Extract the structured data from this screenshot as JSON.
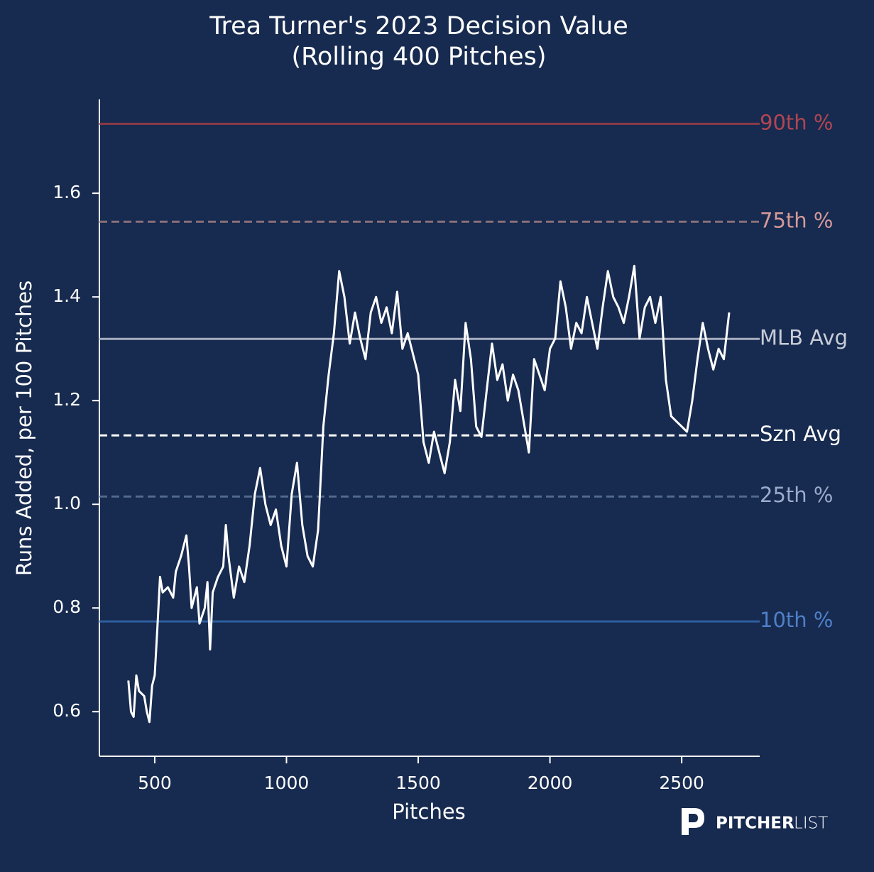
{
  "chart_data": {
    "type": "line",
    "title": "Trea Turner's 2023 Decision Value",
    "subtitle": "(Rolling 400 Pitches)",
    "xlabel": "Pitches",
    "ylabel": "Runs Added, per 100 Pitches",
    "xlim": [
      290,
      2796
    ],
    "xticks": [
      500,
      1000,
      1500,
      2000,
      2500
    ],
    "ylim": [
      0.514,
      1.781
    ],
    "yticks": [
      0.6,
      0.8,
      {
        "value": 1.0,
        "label": "1.0"
      },
      1.2,
      1.4,
      1.6
    ],
    "x": [
      400,
      410,
      420,
      430,
      440,
      460,
      470,
      480,
      490,
      500,
      510,
      520,
      530,
      550,
      570,
      580,
      600,
      620,
      630,
      640,
      660,
      670,
      690,
      700,
      710,
      720,
      740,
      760,
      770,
      780,
      800,
      820,
      840,
      860,
      880,
      900,
      920,
      940,
      960,
      980,
      1000,
      1020,
      1040,
      1060,
      1080,
      1100,
      1120,
      1140,
      1160,
      1180,
      1200,
      1220,
      1240,
      1260,
      1280,
      1300,
      1320,
      1340,
      1360,
      1380,
      1400,
      1420,
      1440,
      1460,
      1480,
      1500,
      1520,
      1540,
      1560,
      1580,
      1600,
      1620,
      1640,
      1660,
      1680,
      1700,
      1720,
      1740,
      1760,
      1780,
      1800,
      1820,
      1840,
      1860,
      1880,
      1900,
      1920,
      1940,
      1960,
      1980,
      2000,
      2020,
      2040,
      2060,
      2080,
      2100,
      2120,
      2140,
      2160,
      2180,
      2200,
      2220,
      2240,
      2260,
      2280,
      2300,
      2320,
      2340,
      2360,
      2380,
      2400,
      2420,
      2440,
      2460,
      2480,
      2500,
      2520,
      2540,
      2560,
      2580,
      2600,
      2620,
      2640,
      2660,
      2680
    ],
    "series": [
      {
        "color": "#ffffff",
        "values": [
          0.66,
          0.6,
          0.59,
          0.67,
          0.64,
          0.63,
          0.6,
          0.58,
          0.65,
          0.67,
          0.76,
          0.86,
          0.83,
          0.84,
          0.82,
          0.87,
          0.9,
          0.94,
          0.88,
          0.8,
          0.84,
          0.77,
          0.8,
          0.85,
          0.72,
          0.83,
          0.86,
          0.88,
          0.96,
          0.9,
          0.82,
          0.88,
          0.85,
          0.92,
          1.02,
          1.07,
          1.0,
          0.96,
          0.99,
          0.92,
          0.88,
          1.02,
          1.08,
          0.96,
          0.9,
          0.88,
          0.95,
          1.15,
          1.25,
          1.33,
          1.45,
          1.4,
          1.31,
          1.37,
          1.32,
          1.28,
          1.37,
          1.4,
          1.35,
          1.38,
          1.33,
          1.41,
          1.3,
          1.33,
          1.29,
          1.25,
          1.12,
          1.08,
          1.14,
          1.1,
          1.06,
          1.12,
          1.24,
          1.18,
          1.35,
          1.28,
          1.15,
          1.13,
          1.22,
          1.31,
          1.24,
          1.27,
          1.2,
          1.25,
          1.22,
          1.16,
          1.1,
          1.28,
          1.25,
          1.22,
          1.3,
          1.32,
          1.43,
          1.38,
          1.3,
          1.35,
          1.33,
          1.4,
          1.35,
          1.3,
          1.38,
          1.45,
          1.4,
          1.38,
          1.35,
          1.4,
          1.46,
          1.32,
          1.38,
          1.4,
          1.35,
          1.4,
          1.24,
          1.17,
          1.16,
          1.15,
          1.14,
          1.2,
          1.28,
          1.35,
          1.3,
          1.26,
          1.3,
          1.28,
          1.37
        ]
      }
    ],
    "reference_lines": [
      {
        "label": "90th %",
        "value": 1.734,
        "color": "#8b3a46",
        "label_color": "#b04652",
        "dashed": false
      },
      {
        "label": "75th %",
        "value": 1.545,
        "color": "#8a6f7a",
        "label_color": "#d49a9a",
        "dashed": true
      },
      {
        "label": "MLB Avg",
        "value": 1.319,
        "color": "#a7aec0",
        "label_color": "#c8cdd8",
        "dashed": false
      },
      {
        "label": "Szn Avg",
        "value": 1.133,
        "color": "#ffffff",
        "label_color": "#ffffff",
        "dashed": true
      },
      {
        "label": "25th %",
        "value": 1.015,
        "color": "#51698c",
        "label_color": "#9aaccc",
        "dashed": true
      },
      {
        "label": "10th %",
        "value": 0.774,
        "color": "#2e5fa0",
        "label_color": "#4f80c8",
        "dashed": false
      }
    ],
    "logo": {
      "bold": "PITCHER",
      "light": "LIST"
    }
  }
}
